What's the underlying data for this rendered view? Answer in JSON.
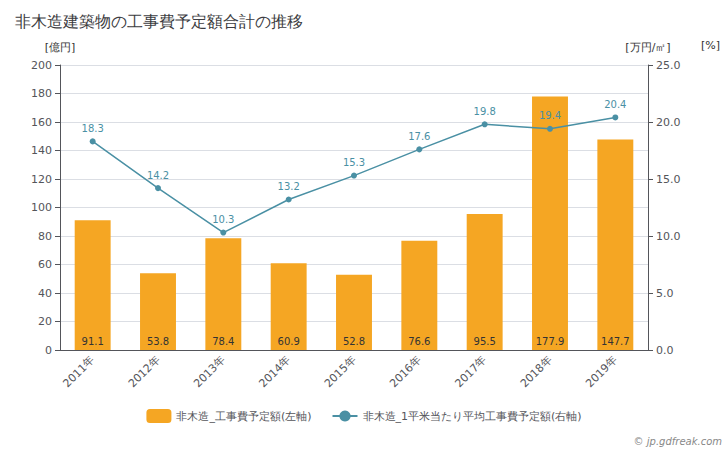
{
  "chart_data": {
    "type": "bar",
    "title": "非木造建築物の工事費予定額合計の推移",
    "categories": [
      "2011年",
      "2012年",
      "2013年",
      "2014年",
      "2015年",
      "2016年",
      "2017年",
      "2018年",
      "2019年"
    ],
    "series": [
      {
        "name": "非木造_工事費予定額(左軸)",
        "type": "bar",
        "color": "#f5a623",
        "values": [
          91.1,
          53.8,
          78.4,
          60.9,
          52.8,
          76.6,
          95.5,
          177.9,
          147.7
        ]
      },
      {
        "name": "非木造_1平米当たり平均工事費予定額(右軸)",
        "type": "line",
        "axis": "y2",
        "color": "#4a90a4",
        "marker": "circle",
        "values": [
          18.3,
          14.2,
          10.3,
          13.2,
          15.3,
          17.6,
          19.8,
          19.4,
          20.4
        ]
      }
    ],
    "ylabel": "[億円]",
    "y2label": "[万円/㎡]",
    "ylim": [
      0,
      200
    ],
    "yticks": [
      0,
      20,
      40,
      60,
      80,
      100,
      120,
      140,
      160,
      180,
      200
    ],
    "y2lim": [
      0,
      25.0
    ],
    "y2ticks": [
      {
        "value": 0.0,
        "label": "0.0"
      },
      {
        "value": 5.0,
        "label": "5.0"
      },
      {
        "value": 10.0,
        "label": "10.0"
      },
      {
        "value": 15.0,
        "label": "15.0"
      },
      {
        "value": 20.0,
        "label": "20.0"
      },
      {
        "value": 25.0,
        "label": "25.0"
      }
    ],
    "annotations": [
      "[%]",
      "© jp.gdfreak.com"
    ],
    "data_labels": true,
    "grid": true,
    "legend": "bottom"
  }
}
